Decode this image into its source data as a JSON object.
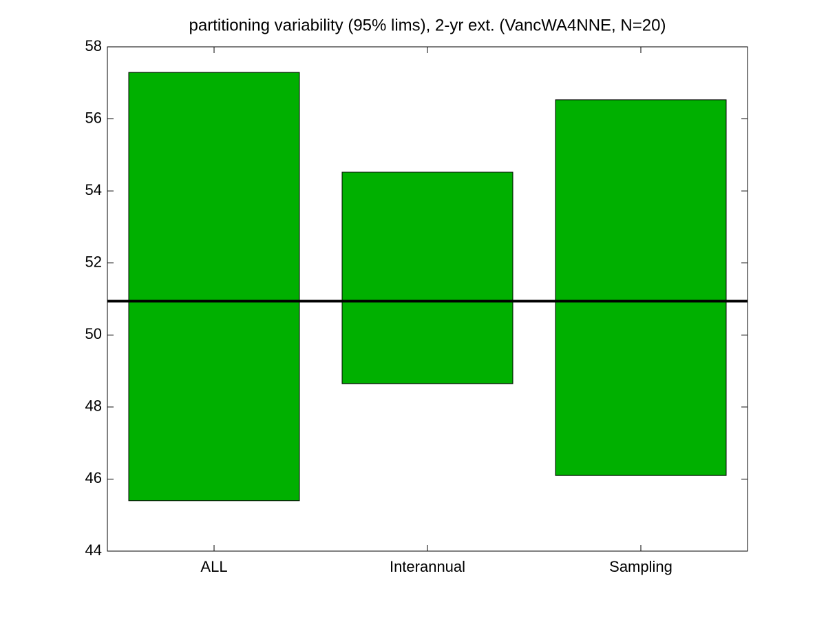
{
  "chart_data": {
    "type": "range-bar",
    "title": "partitioning variability (95% lims), 2-yr ext. (VancWA4NNE, N=20)",
    "categories": [
      "ALL",
      "Interannual",
      "Sampling"
    ],
    "low": [
      45.4,
      48.65,
      46.1
    ],
    "high": [
      57.29,
      54.52,
      56.53
    ],
    "reference_line": 50.94,
    "color": "#00b000",
    "ylim": [
      44,
      58
    ],
    "yticks": [
      44,
      46,
      48,
      50,
      52,
      54,
      56,
      58
    ],
    "grid": false
  }
}
